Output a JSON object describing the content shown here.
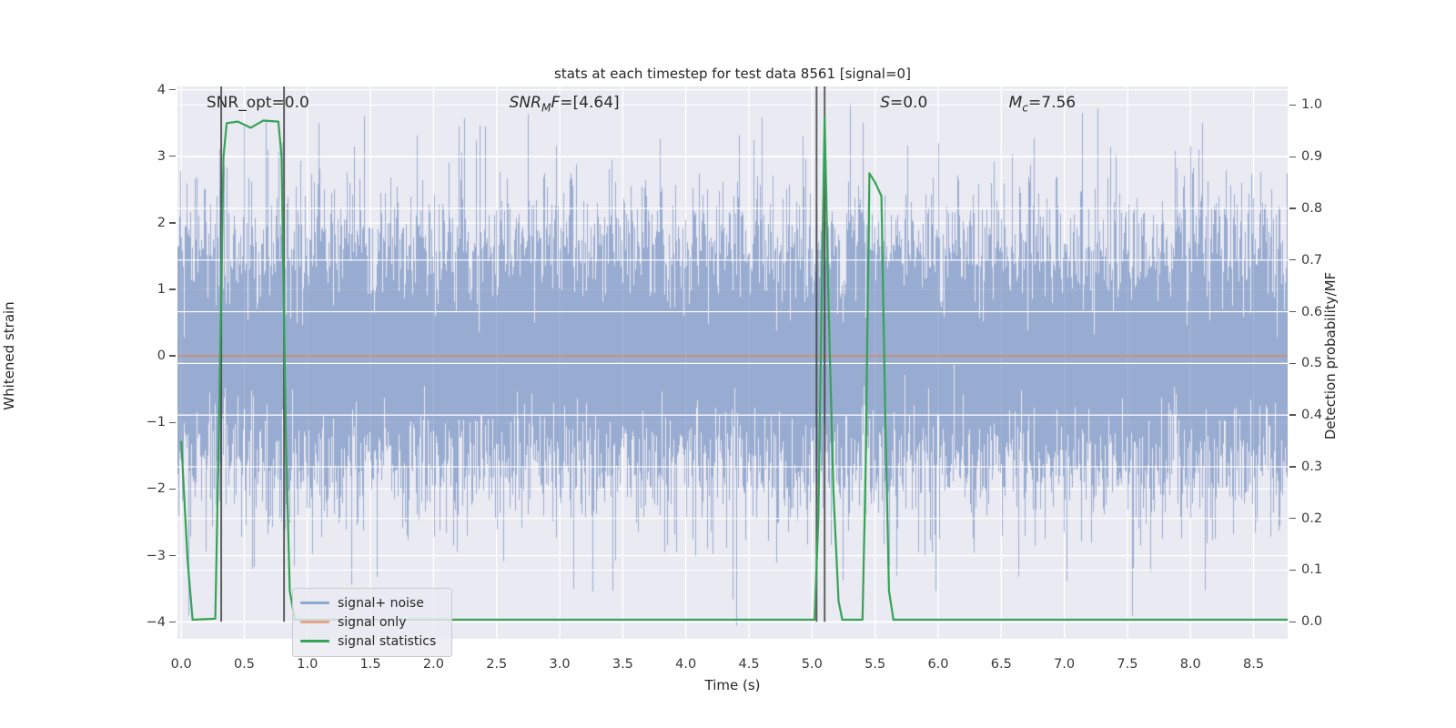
{
  "figure": {
    "plot_bg_color": "#eaeaf2",
    "outer_bg_color": "#ffffff",
    "grid_color": "#ffffff"
  },
  "chart_data": {
    "type": "line",
    "title": "stats at each timestep for test data 8561 [signal=0]",
    "xlabel": "Time (s)",
    "ylabel_left": "Whitened strain",
    "ylabel_right": "Detection probability/MF",
    "xlim": [
      -0.03,
      8.77
    ],
    "ylim_left": [
      -4.25,
      4.05
    ],
    "ylim_right": [
      -0.033,
      1.036
    ],
    "xticks": {
      "values": [
        0,
        0.5,
        1,
        1.5,
        2,
        2.5,
        3,
        3.5,
        4,
        4.5,
        5,
        5.5,
        6,
        6.5,
        7,
        7.5,
        8,
        8.5
      ],
      "labels": [
        "0.0",
        "0.5",
        "1.0",
        "1.5",
        "2.0",
        "2.5",
        "3.0",
        "3.5",
        "4.0",
        "4.5",
        "5.0",
        "5.5",
        "6.0",
        "6.5",
        "7.0",
        "7.5",
        "8.0",
        "8.5"
      ]
    },
    "yticks_left": {
      "values": [
        4,
        3,
        2,
        1,
        0,
        -1,
        -2,
        -3,
        -4
      ],
      "labels": [
        "4",
        "3",
        "2",
        "1",
        "0",
        "−1",
        "−2",
        "−3",
        "−4"
      ]
    },
    "yticks_right": {
      "values": [
        1.0,
        0.9,
        0.8,
        0.7,
        0.6,
        0.5,
        0.4,
        0.3,
        0.2,
        0.1,
        0.0
      ],
      "labels": [
        "1.0",
        "0.9",
        "0.8",
        "0.7",
        "0.6",
        "0.5",
        "0.4",
        "0.3",
        "0.2",
        "0.1",
        "0.0"
      ]
    },
    "grid": {
      "vertical_below_data": true,
      "left_horizontal_below_data": true,
      "right_horizontal_above_data": true
    },
    "series": [
      {
        "name": "signal+ noise",
        "kind": "noise",
        "color": "#4C72B0",
        "alpha": 0.52,
        "sigma": 1.0,
        "samples_per_column": 14,
        "extra_tail_prob": 0.08,
        "extra_tail_sigma": 1.35,
        "seed": 20240813,
        "forced_spikes": [
          {
            "t": 7.54,
            "value": -3.9
          },
          {
            "t": 7.26,
            "value": 3.72
          },
          {
            "t": 1.45,
            "value": 3.6
          },
          {
            "t": 4.6,
            "value": 3.58
          },
          {
            "t": 3.11,
            "value": -3.5
          },
          {
            "t": 5.67,
            "value": -3.3
          },
          {
            "t": 8.09,
            "value": 3.5
          },
          {
            "t": 1.09,
            "value": 3.5
          },
          {
            "t": 2.2,
            "value": 3.45
          },
          {
            "t": 0.3,
            "value": 3.1
          },
          {
            "t": 6.0,
            "value": 3.2
          }
        ]
      },
      {
        "name": "signal only",
        "kind": "flat",
        "color": "#DD8452",
        "alpha": 0.75,
        "value": 0.0
      },
      {
        "name": "signal statistics",
        "kind": "keypoints",
        "color": "#36a257",
        "axis": "right",
        "points": [
          [
            0.0,
            0.35
          ],
          [
            0.05,
            0.12
          ],
          [
            0.09,
            0.004
          ],
          [
            0.27,
            0.006
          ],
          [
            0.3,
            0.4
          ],
          [
            0.335,
            0.9
          ],
          [
            0.36,
            0.965
          ],
          [
            0.45,
            0.968
          ],
          [
            0.55,
            0.956
          ],
          [
            0.65,
            0.97
          ],
          [
            0.77,
            0.968
          ],
          [
            0.795,
            0.9
          ],
          [
            0.83,
            0.35
          ],
          [
            0.86,
            0.06
          ],
          [
            0.9,
            0.004
          ],
          [
            1.5,
            0.004
          ],
          [
            2.5,
            0.004
          ],
          [
            3.5,
            0.004
          ],
          [
            4.5,
            0.004
          ],
          [
            5.02,
            0.004
          ],
          [
            5.05,
            0.2
          ],
          [
            5.075,
            0.6
          ],
          [
            5.1,
            0.977
          ],
          [
            5.13,
            0.62
          ],
          [
            5.17,
            0.25
          ],
          [
            5.21,
            0.04
          ],
          [
            5.24,
            0.004
          ],
          [
            5.4,
            0.004
          ],
          [
            5.425,
            0.3
          ],
          [
            5.455,
            0.868
          ],
          [
            5.5,
            0.85
          ],
          [
            5.55,
            0.824
          ],
          [
            5.58,
            0.4
          ],
          [
            5.61,
            0.06
          ],
          [
            5.645,
            0.004
          ],
          [
            6.5,
            0.004
          ],
          [
            7.5,
            0.004
          ],
          [
            8.77,
            0.004
          ]
        ]
      }
    ],
    "vlines": {
      "color": "#3c3c3c",
      "alpha": 0.8,
      "times": [
        0.317,
        0.815,
        5.036,
        5.1
      ],
      "span_right_axis": [
        0.0,
        1.036
      ]
    },
    "annotations": [
      {
        "t": 0.2,
        "y_left_axis": 3.94,
        "parts": [
          {
            "text": "SNR_opt=0.0",
            "italic": false
          }
        ]
      },
      {
        "t": 2.6,
        "y_left_axis": 3.94,
        "parts": [
          {
            "text": "SNR",
            "italic": true
          },
          {
            "text": "M",
            "italic": true,
            "sub": true
          },
          {
            "text": "F",
            "italic": true
          },
          {
            "text": "=[4.64]",
            "italic": false
          }
        ]
      },
      {
        "t": 5.54,
        "y_left_axis": 3.94,
        "parts": [
          {
            "text": "S",
            "italic": true
          },
          {
            "text": "=0.0",
            "italic": false
          }
        ]
      },
      {
        "t": 6.56,
        "y_left_axis": 3.94,
        "parts": [
          {
            "text": "M",
            "italic": true
          },
          {
            "text": "c",
            "italic": true,
            "sub": true
          },
          {
            "text": "=7.56",
            "italic": false
          }
        ]
      }
    ]
  },
  "legend": {
    "items": [
      {
        "label": "signal+ noise",
        "color": "#8ba7d4"
      },
      {
        "label": "signal only",
        "color": "#e3a588"
      },
      {
        "label": "signal statistics",
        "color": "#36a257"
      }
    ]
  }
}
